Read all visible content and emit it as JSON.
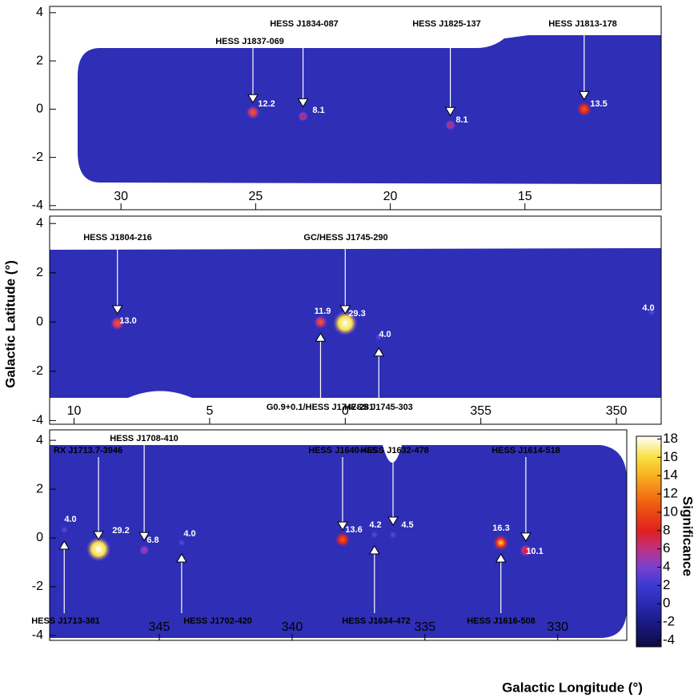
{
  "chart_data": [
    {
      "type": "skymap",
      "xlim": [
        32.65,
        9.94
      ],
      "ylim": [
        -4.17,
        4.26
      ],
      "xticks": [
        30,
        25,
        20,
        15
      ],
      "yticks": [
        4,
        2,
        0,
        -2,
        -4
      ],
      "names": [
        "HESS J1837-069",
        "HESS J1834-087",
        "HESS J1825-137",
        "HESS J1813-178"
      ],
      "l": [
        25.1,
        23.24,
        17.77,
        12.8
      ],
      "b": [
        -0.13,
        -0.3,
        -0.66,
        0.0
      ],
      "values": [
        12.2,
        8.1,
        8.1,
        13.5
      ],
      "value_labels": [
        "12.2",
        "8.1",
        "8.1",
        "13.5"
      ]
    },
    {
      "type": "skymap",
      "xlim": [
        10.9,
        -11.65
      ],
      "ylim": [
        -4.15,
        4.3
      ],
      "xticks": [
        10,
        5,
        0,
        {
          "value": -5,
          "label": "355"
        },
        {
          "value": -10,
          "label": "350"
        }
      ],
      "yticks": [
        4,
        2,
        0,
        -2,
        -4
      ],
      "names": [
        "HESS J1804-216",
        "GC/HESS J1745-290",
        "G0.9+0.1/HESS J1747-281",
        "HESS J1745-303",
        null
      ],
      "l": [
        8.4,
        0.0,
        0.91,
        -1.24,
        -11.3
      ],
      "b": [
        -0.05,
        -0.05,
        0.0,
        -0.6,
        0.4
      ],
      "values": [
        13.0,
        29.3,
        11.9,
        4.0,
        4.0
      ],
      "value_labels": [
        "13.0",
        "29.3",
        "11.9",
        "4.0",
        "4.0"
      ]
    },
    {
      "type": "skymap",
      "xlim": [
        -10.87,
        -32.6
      ],
      "ylim": [
        -4.2,
        4.43
      ],
      "xticks": [
        {
          "value": -15,
          "label": "345"
        },
        {
          "value": -20,
          "label": "340"
        },
        {
          "value": -25,
          "label": "335"
        },
        {
          "value": -30,
          "label": "330"
        }
      ],
      "yticks": [
        4,
        2,
        0,
        -2,
        -4
      ],
      "names": [
        "HESS J1713-381",
        "RX J1713.7-3946",
        "HESS J1708-410",
        "HESS J1702-420",
        "HESS J1640-465",
        "HESS J1634-472",
        "HESS J1632-478",
        "HESS J1616-508",
        "HESS J1614-518"
      ],
      "l": [
        -11.42,
        -12.71,
        -14.43,
        -15.84,
        -21.9,
        -23.1,
        -23.8,
        -27.86,
        -28.8
      ],
      "b": [
        0.33,
        -0.46,
        -0.5,
        -0.2,
        -0.07,
        0.13,
        0.13,
        -0.2,
        -0.52
      ],
      "values": [
        4.0,
        29.2,
        6.8,
        4.0,
        13.6,
        4.2,
        4.5,
        16.3,
        10.1
      ],
      "value_labels": [
        "4.0",
        "29.2",
        "6.8",
        "4.0",
        "13.6",
        "4.2",
        "4.5",
        "16.3",
        "10.1"
      ]
    }
  ],
  "colorbar": {
    "label": "Significance",
    "lim": [
      -4.7,
      18.3
    ],
    "ticks": [
      18,
      16,
      14,
      12,
      10,
      8,
      6,
      4,
      2,
      0,
      -2,
      -4
    ]
  },
  "ylabel": "Galactic Latitude (°)",
  "xlabel": "Galactic Longitude (°)"
}
